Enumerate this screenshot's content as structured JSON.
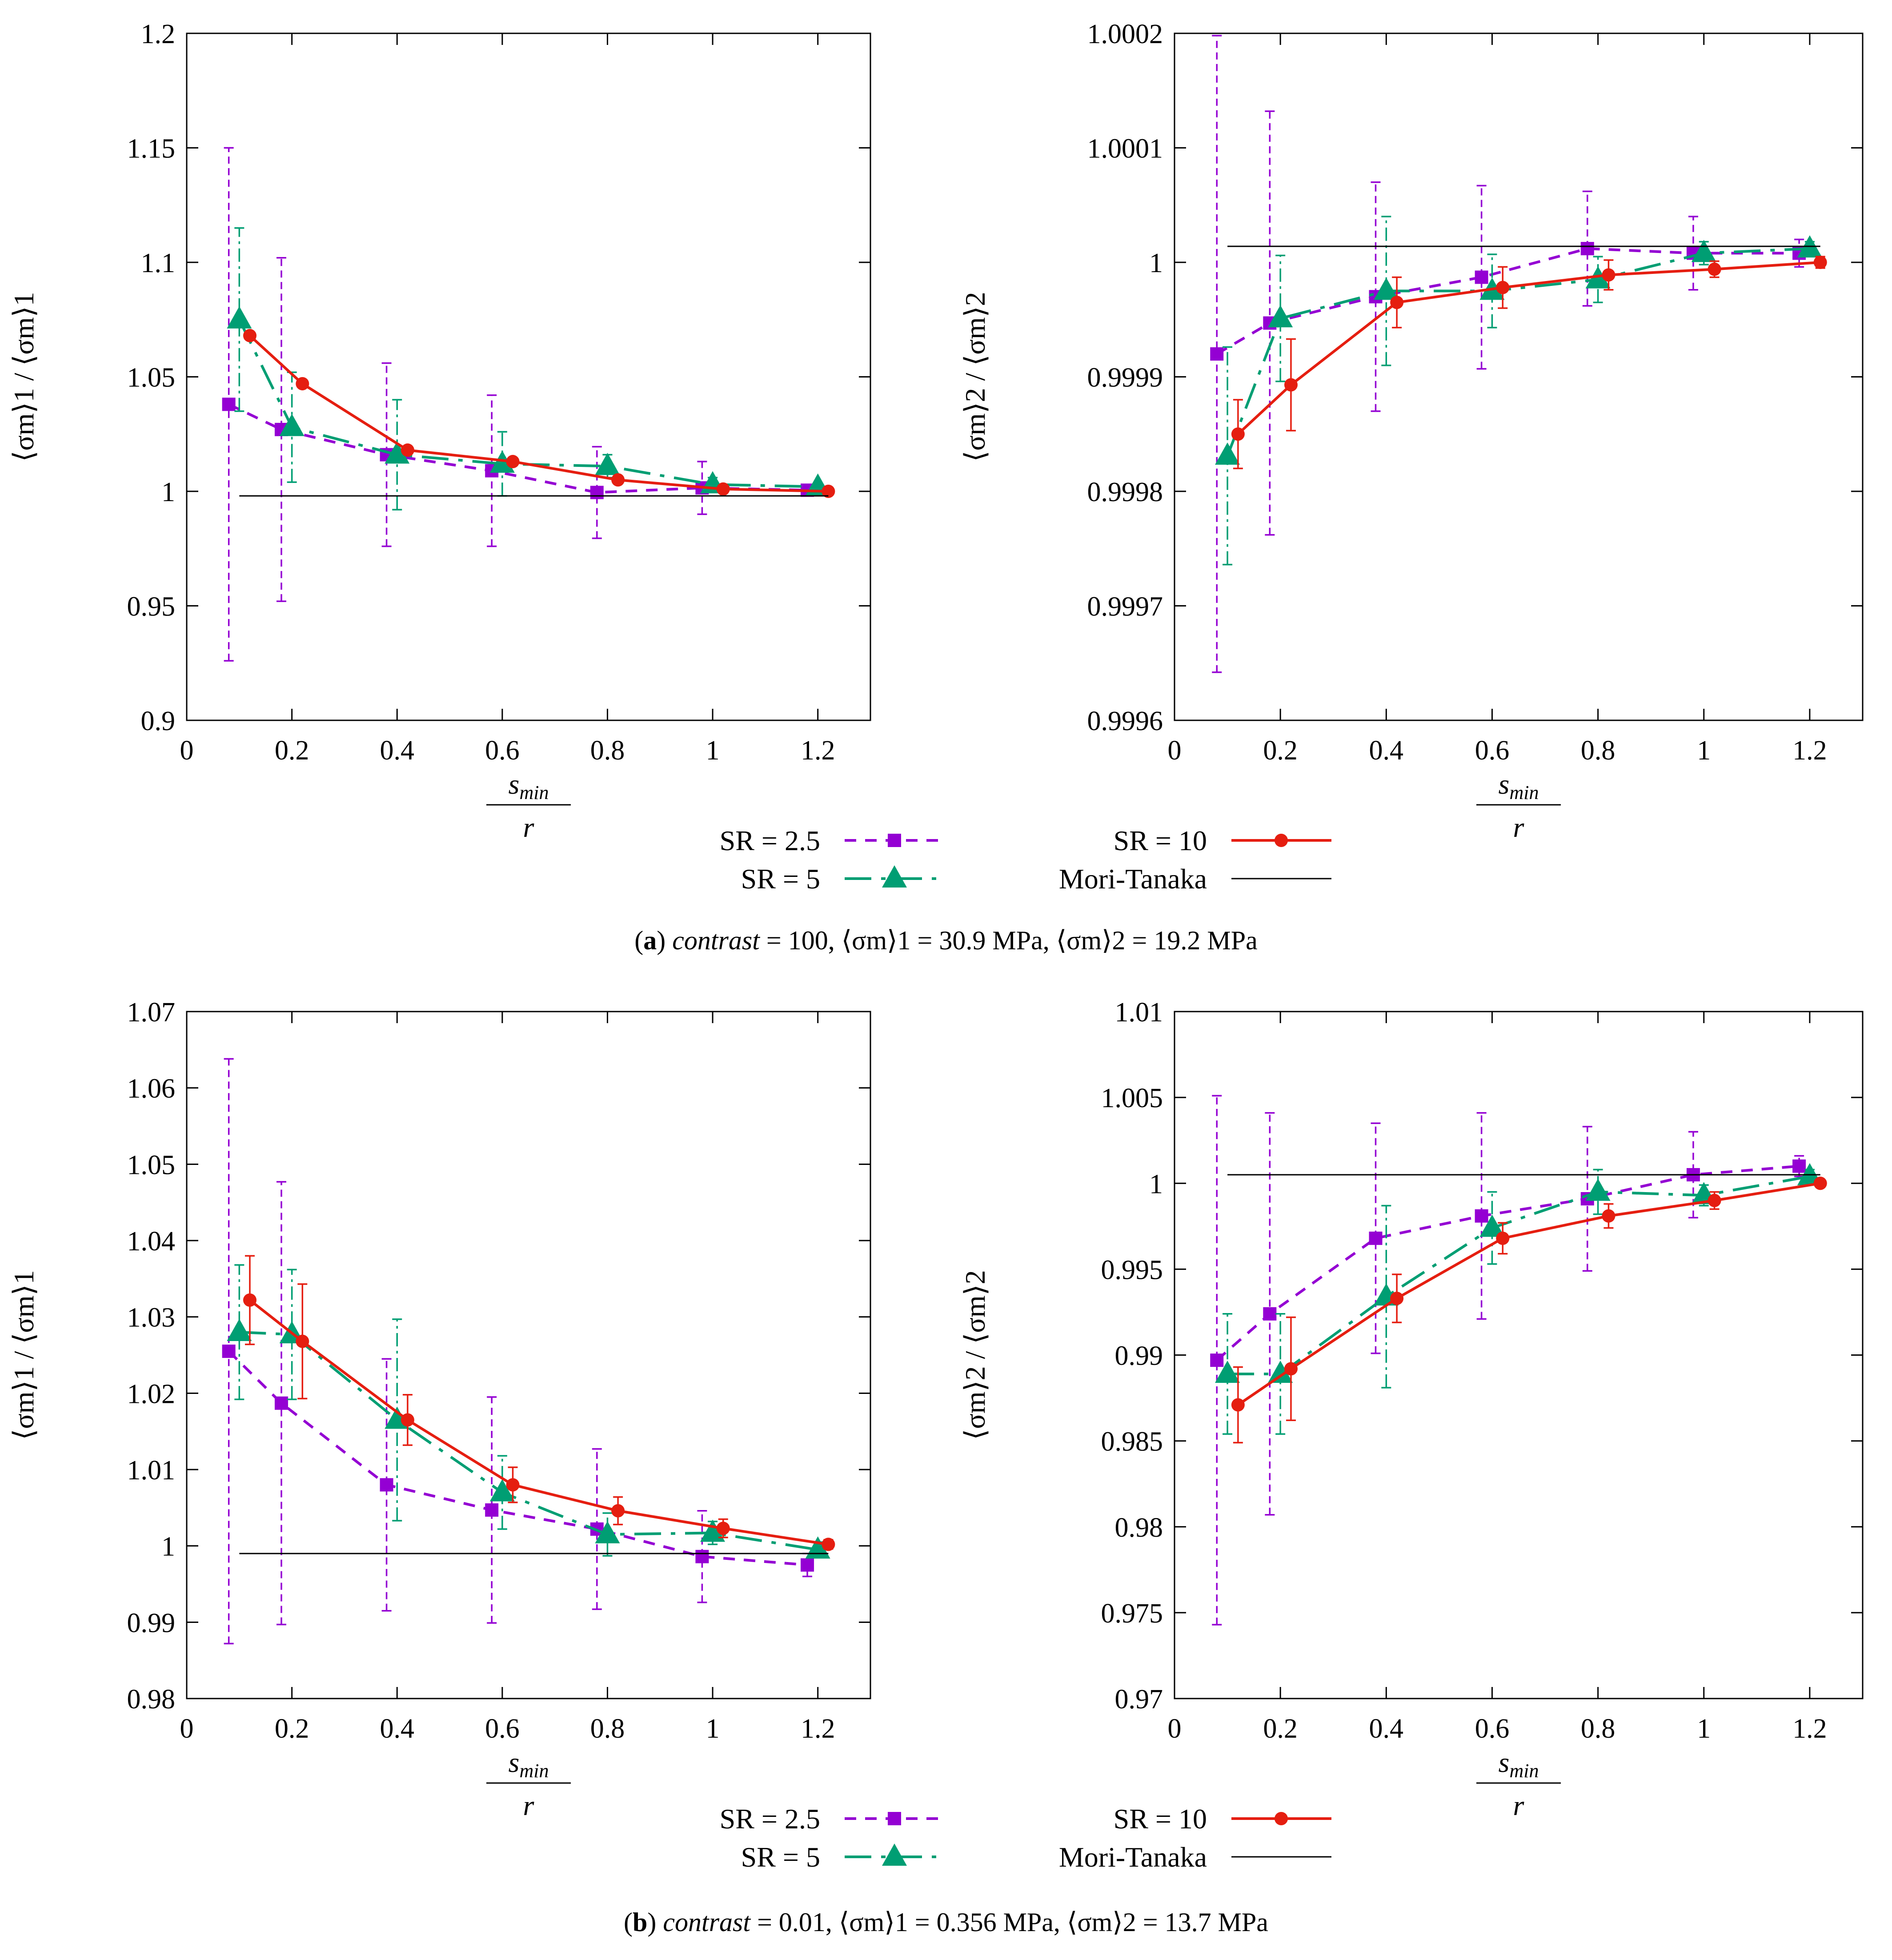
{
  "colors": {
    "sr25": "#9400d3",
    "sr5": "#009e73",
    "sr10": "#e51e10",
    "mt": "#000000"
  },
  "legend": {
    "sr25": "SR = 2.5",
    "sr5": "SR = 5",
    "sr10": "SR = 10",
    "mt": "Mori-Tanaka"
  },
  "captions": {
    "a": {
      "label": "a",
      "contrast_name": "contrast",
      "text": " = 100, ⟨σm⟩1 = 30.9 MPa, ⟨σm⟩2 = 19.2 MPa"
    },
    "b": {
      "label": "b",
      "contrast_name": "contrast",
      "text": " = 0.01, ⟨σm⟩1 = 0.356 MPa, ⟨σm⟩2 = 13.7 MPa"
    }
  },
  "chart_data": [
    {
      "id": "a1",
      "type": "line",
      "xlabel_num": "s_min",
      "xlabel_den": "r",
      "ylabel": "⟨σm⟩1 / ⟨σm⟩1",
      "xlim": [
        0,
        1.3
      ],
      "ylim": [
        0.9,
        1.2
      ],
      "xticks": [
        "0",
        "0.2",
        "0.4",
        "0.6",
        "0.8",
        "1",
        "1.2"
      ],
      "xtick_values": [
        0,
        0.2,
        0.4,
        0.6,
        0.8,
        1,
        1.2
      ],
      "yticks": [
        "0.9",
        "0.95",
        "1",
        "1.05",
        "1.1",
        "1.15",
        "1.2"
      ],
      "ytick_values": [
        0.9,
        0.95,
        1,
        1.05,
        1.1,
        1.15,
        1.2
      ],
      "series": [
        {
          "name": "SR = 2.5",
          "x": [
            0.08,
            0.18,
            0.38,
            0.58,
            0.78,
            0.98,
            1.18
          ],
          "y": [
            1.038,
            1.027,
            1.016,
            1.009,
            0.9995,
            1.0015,
            1.0005
          ],
          "err": [
            0.112,
            0.075,
            0.04,
            0.033,
            0.02,
            0.0115,
            0.002
          ]
        },
        {
          "name": "SR = 5",
          "x": [
            0.1,
            0.2,
            0.4,
            0.6,
            0.8,
            1,
            1.2
          ],
          "y": [
            1.075,
            1.028,
            1.016,
            1.012,
            1.011,
            1.003,
            1.002
          ],
          "err": [
            0.04,
            0.024,
            0.024,
            0.014,
            0.005,
            0.003,
            0.0015
          ]
        },
        {
          "name": "SR = 10",
          "x": [
            0.12,
            0.22,
            0.42,
            0.62,
            0.82,
            1.02,
            1.22
          ],
          "y": [
            1.068,
            1.047,
            1.018,
            1.013,
            1.005,
            1.001,
            1.0
          ]
        },
        {
          "name": "Mori-Tanaka",
          "x": [
            0.1,
            1.22
          ],
          "y": [
            0.998,
            0.998
          ]
        }
      ]
    },
    {
      "id": "a2",
      "type": "line",
      "xlabel_num": "s_min",
      "xlabel_den": "r",
      "ylabel": "⟨σm⟩2 / ⟨σm⟩2",
      "xlim": [
        0,
        1.3
      ],
      "ylim": [
        0.9996,
        1.0002
      ],
      "xticks": [
        "0",
        "0.2",
        "0.4",
        "0.6",
        "0.8",
        "1",
        "1.2"
      ],
      "xtick_values": [
        0,
        0.2,
        0.4,
        0.6,
        0.8,
        1,
        1.2
      ],
      "yticks": [
        "0.9996",
        "0.9997",
        "0.9998",
        "0.9999",
        "1",
        "1.0001",
        "1.0002"
      ],
      "ytick_values": [
        0.9996,
        0.9997,
        0.9998,
        0.9999,
        1,
        1.0001,
        1.0002
      ],
      "series": [
        {
          "name": "SR = 2.5",
          "x": [
            0.08,
            0.18,
            0.38,
            0.58,
            0.78,
            0.98,
            1.18
          ],
          "y": [
            0.99992,
            0.999947,
            0.99997,
            0.999987,
            1.000012,
            1.000008,
            1.000008
          ],
          "err": [
            0.000278,
            0.000185,
            0.0001,
            8e-05,
            5e-05,
            3.2e-05,
            1.2e-05
          ]
        },
        {
          "name": "SR = 5",
          "x": [
            0.1,
            0.2,
            0.4,
            0.6,
            0.8,
            1,
            1.2
          ],
          "y": [
            0.999831,
            0.999951,
            0.999975,
            0.999975,
            0.999985,
            1.000008,
            1.000012
          ],
          "err": [
            9.5e-05,
            5.5e-05,
            6.5e-05,
            3.2e-05,
            2e-05,
            1e-05,
            6e-06
          ]
        },
        {
          "name": "SR = 10",
          "x": [
            0.12,
            0.22,
            0.42,
            0.62,
            0.82,
            1.02,
            1.22
          ],
          "y": [
            0.99985,
            0.999893,
            0.999965,
            0.999978,
            0.999989,
            0.999994,
            1.0
          ],
          "err": [
            3e-05,
            4e-05,
            2.2e-05,
            1.8e-05,
            1.3e-05,
            7e-06,
            5e-06
          ]
        },
        {
          "name": "Mori-Tanaka",
          "x": [
            0.1,
            1.22
          ],
          "y": [
            1.000014,
            1.000014
          ]
        }
      ]
    },
    {
      "id": "b1",
      "type": "line",
      "xlabel_num": "s_min",
      "xlabel_den": "r",
      "ylabel": "⟨σm⟩1 / ⟨σm⟩1",
      "xlim": [
        0,
        1.3
      ],
      "ylim": [
        0.98,
        1.07
      ],
      "xticks": [
        "0",
        "0.2",
        "0.4",
        "0.6",
        "0.8",
        "1",
        "1.2"
      ],
      "xtick_values": [
        0,
        0.2,
        0.4,
        0.6,
        0.8,
        1,
        1.2
      ],
      "yticks": [
        "0.98",
        "0.99",
        "1",
        "1.01",
        "1.02",
        "1.03",
        "1.04",
        "1.05",
        "1.06",
        "1.07"
      ],
      "ytick_values": [
        0.98,
        0.99,
        1,
        1.01,
        1.02,
        1.03,
        1.04,
        1.05,
        1.06,
        1.07
      ],
      "series": [
        {
          "name": "SR = 2.5",
          "x": [
            0.08,
            0.18,
            0.38,
            0.58,
            0.78,
            0.98,
            1.18
          ],
          "y": [
            1.0255,
            1.0187,
            1.008,
            1.0047,
            1.0022,
            0.9986,
            0.9975
          ],
          "err": [
            0.0383,
            0.029,
            0.0165,
            0.0148,
            0.0105,
            0.006,
            0.0015
          ]
        },
        {
          "name": "SR = 5",
          "x": [
            0.1,
            0.2,
            0.4,
            0.6,
            0.8,
            1,
            1.2
          ],
          "y": [
            1.028,
            1.0277,
            1.0165,
            1.007,
            1.0015,
            1.0017,
            0.9995
          ],
          "err": [
            0.0088,
            0.0085,
            0.0132,
            0.0048,
            0.0028,
            0.0015,
            0.001
          ]
        },
        {
          "name": "SR = 10",
          "x": [
            0.12,
            0.22,
            0.42,
            0.62,
            0.82,
            1.02,
            1.22
          ],
          "y": [
            1.0322,
            1.0268,
            1.0165,
            1.008,
            1.0046,
            1.0023,
            1.0002
          ],
          "err": [
            0.0058,
            0.0075,
            0.0033,
            0.0023,
            0.0018,
            0.0012,
            0.0006
          ]
        },
        {
          "name": "Mori-Tanaka",
          "x": [
            0.1,
            1.22
          ],
          "y": [
            0.999,
            0.999
          ]
        }
      ]
    },
    {
      "id": "b2",
      "type": "line",
      "xlabel_num": "s_min",
      "xlabel_den": "r",
      "ylabel": "⟨σm⟩2 / ⟨σm⟩2",
      "xlim": [
        0,
        1.3
      ],
      "ylim": [
        0.97,
        1.01
      ],
      "xticks": [
        "0",
        "0.2",
        "0.4",
        "0.6",
        "0.8",
        "1",
        "1.2"
      ],
      "xtick_values": [
        0,
        0.2,
        0.4,
        0.6,
        0.8,
        1,
        1.2
      ],
      "yticks": [
        "0.97",
        "0.975",
        "0.98",
        "0.985",
        "0.99",
        "0.995",
        "1",
        "1.005",
        "1.01"
      ],
      "ytick_values": [
        0.97,
        0.975,
        0.98,
        0.985,
        0.99,
        0.995,
        1,
        1.005,
        1.01
      ],
      "series": [
        {
          "name": "SR = 2.5",
          "x": [
            0.08,
            0.18,
            0.38,
            0.58,
            0.78,
            0.98,
            1.18
          ],
          "y": [
            0.9897,
            0.9924,
            0.9968,
            0.9981,
            0.9991,
            1.0005,
            1.001
          ],
          "err": [
            0.0154,
            0.0117,
            0.0067,
            0.006,
            0.0042,
            0.0025,
            0.0006
          ]
        },
        {
          "name": "SR = 5",
          "x": [
            0.1,
            0.2,
            0.4,
            0.6,
            0.8,
            1,
            1.2
          ],
          "y": [
            0.9889,
            0.9889,
            0.9934,
            0.9974,
            0.9995,
            0.9993,
            1.0004
          ],
          "err": [
            0.0035,
            0.0035,
            0.0053,
            0.0021,
            0.0013,
            0.0006,
            0.0004
          ]
        },
        {
          "name": "SR = 10",
          "x": [
            0.12,
            0.22,
            0.42,
            0.62,
            0.82,
            1.02,
            1.22
          ],
          "y": [
            0.9871,
            0.9892,
            0.9933,
            0.9968,
            0.9981,
            0.999,
            1.0
          ],
          "err": [
            0.0022,
            0.003,
            0.0014,
            0.0009,
            0.0007,
            0.0005,
            0.0002
          ]
        },
        {
          "name": "Mori-Tanaka",
          "x": [
            0.1,
            1.22
          ],
          "y": [
            1.0005,
            1.0005
          ]
        }
      ]
    }
  ]
}
